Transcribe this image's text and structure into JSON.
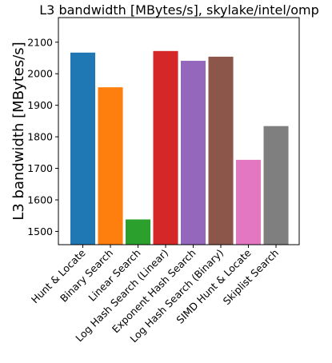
{
  "chart_data": {
    "type": "bar",
    "title": "L3 bandwidth [MBytes/s], skylake/intel/omp",
    "xlabel": "",
    "ylabel": "L3 bandwidth [MBytes/s]",
    "ylim": [
      1458,
      2178
    ],
    "yticks": [
      1500,
      1600,
      1700,
      1800,
      1900,
      2000,
      2100
    ],
    "grid": false,
    "categories": [
      "Hunt & Locate",
      "Binary Search",
      "Linear Search",
      "Log Hash Search (Linear)",
      "Exponent Hash Search",
      "Log Hash Search (Binary)",
      "SIMD Hunt & Locate",
      "Skiplist Search"
    ],
    "values": [
      2067,
      1957,
      1538,
      2072,
      2041,
      2054,
      1727,
      1834
    ],
    "colors": [
      "#1f77b4",
      "#ff7f0e",
      "#2ca02c",
      "#d62728",
      "#9467bd",
      "#8c564b",
      "#e377c2",
      "#7f7f7f"
    ]
  }
}
